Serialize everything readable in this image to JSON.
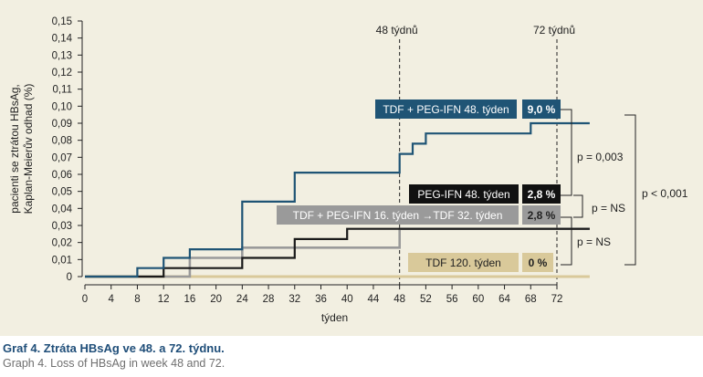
{
  "chart_data": {
    "type": "line",
    "step": true,
    "xlabel": "týden",
    "ylabel_lines": [
      "pacienti se ztrátou HBsAg,",
      "Kaplan-Meierův odhad (%)"
    ],
    "xlim": [
      0,
      72
    ],
    "ylim": [
      0,
      0.15
    ],
    "x_ticks": [
      "0",
      "4",
      "8",
      "12",
      "16",
      "20",
      "24",
      "28",
      "32",
      "36",
      "40",
      "44",
      "48",
      "52",
      "56",
      "60",
      "64",
      "68",
      "72"
    ],
    "y_ticks": [
      "0",
      "0,01",
      "0,02",
      "0,03",
      "0,04",
      "0,05",
      "0,06",
      "0,07",
      "0,08",
      "0,09",
      "0,10",
      "0,11",
      "0,12",
      "0,13",
      "0,14",
      "0,15"
    ],
    "reference_lines": [
      {
        "x": 48,
        "label": "48 týdnů"
      },
      {
        "x": 72,
        "label": "72 týdnů"
      }
    ],
    "series": [
      {
        "name": "TDF + PEG-IFN 48. týden",
        "end_label": "9,0 %",
        "color": "#1f5475",
        "points": [
          [
            0,
            0
          ],
          [
            8,
            0
          ],
          [
            8,
            0.005
          ],
          [
            12,
            0.005
          ],
          [
            12,
            0.011
          ],
          [
            16,
            0.011
          ],
          [
            16,
            0.016
          ],
          [
            24,
            0.016
          ],
          [
            24,
            0.044
          ],
          [
            32,
            0.044
          ],
          [
            32,
            0.061
          ],
          [
            48,
            0.061
          ],
          [
            48,
            0.072
          ],
          [
            50,
            0.072
          ],
          [
            50,
            0.078
          ],
          [
            52,
            0.078
          ],
          [
            52,
            0.084
          ],
          [
            68,
            0.084
          ],
          [
            68,
            0.09
          ],
          [
            77,
            0.09
          ]
        ]
      },
      {
        "name": "PEG-IFN 48. týden",
        "end_label": "2,8 %",
        "color": "#1a1a1a",
        "points": [
          [
            0,
            0
          ],
          [
            12,
            0
          ],
          [
            12,
            0.005
          ],
          [
            24,
            0.005
          ],
          [
            24,
            0.011
          ],
          [
            32,
            0.011
          ],
          [
            32,
            0.022
          ],
          [
            40,
            0.022
          ],
          [
            40,
            0.028
          ],
          [
            77,
            0.028
          ]
        ]
      },
      {
        "name": "TDF + PEG-IFN 16. týden →TDF 32. týden",
        "end_label": "2,8 %",
        "color": "#9a9a9a",
        "points": [
          [
            0,
            0
          ],
          [
            16,
            0
          ],
          [
            16,
            0.011
          ],
          [
            24,
            0.011
          ],
          [
            24,
            0.017
          ],
          [
            48,
            0.017
          ],
          [
            48,
            0.028
          ],
          [
            77,
            0.028
          ]
        ]
      },
      {
        "name": "TDF 120. týden",
        "end_label": "0 %",
        "color": "#d9c99a",
        "points": [
          [
            0,
            0
          ],
          [
            77,
            0
          ]
        ]
      }
    ],
    "annotations": [
      {
        "text": "p = 0,003"
      },
      {
        "text": "p = NS"
      },
      {
        "text": "p = NS"
      },
      {
        "text": "p < 0,001"
      }
    ]
  },
  "caption": {
    "title": "Graf 4. Ztráta HBsAg ve 48. a 72. týdnu.",
    "subtitle": "Graph 4. Loss of HBsAg in week 48 and 72."
  }
}
